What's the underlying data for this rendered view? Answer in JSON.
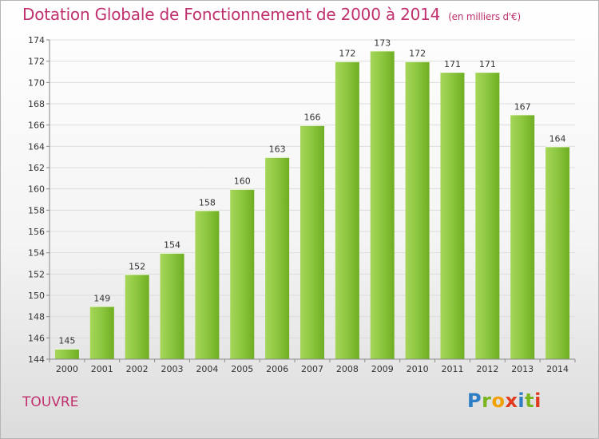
{
  "title": "Dotation Globale de Fonctionnement de 2000 à 2014",
  "subtitle": "(en milliers d'€)",
  "commune": "TOUVRE",
  "logo": {
    "letters": [
      "P",
      "r",
      "o",
      "x",
      "i",
      "t",
      "i"
    ],
    "colors": [
      "#2d7ec4",
      "#7ab51d",
      "#f2a100",
      "#e23a1e",
      "#2d7ec4",
      "#7ab51d",
      "#e23a1e"
    ]
  },
  "colors": {
    "bar": "#7cbd2a",
    "bar_light": "#a8d95a",
    "title": "#c0306e"
  },
  "chart_data": {
    "type": "bar",
    "title": "Dotation Globale de Fonctionnement de 2000 à 2014",
    "subtitle": "(en milliers d'€)",
    "categories": [
      "2000",
      "2001",
      "2002",
      "2003",
      "2004",
      "2005",
      "2006",
      "2007",
      "2008",
      "2009",
      "2010",
      "2011",
      "2012",
      "2013",
      "2014"
    ],
    "values": [
      145,
      149,
      152,
      154,
      158,
      160,
      163,
      166,
      172,
      173,
      172,
      171,
      171,
      167,
      164
    ],
    "ylim": [
      144,
      174
    ],
    "yticks": [
      144,
      146,
      148,
      150,
      152,
      154,
      156,
      158,
      160,
      162,
      164,
      166,
      168,
      170,
      172,
      174
    ],
    "grid": true,
    "xlabel": "",
    "ylabel": ""
  }
}
